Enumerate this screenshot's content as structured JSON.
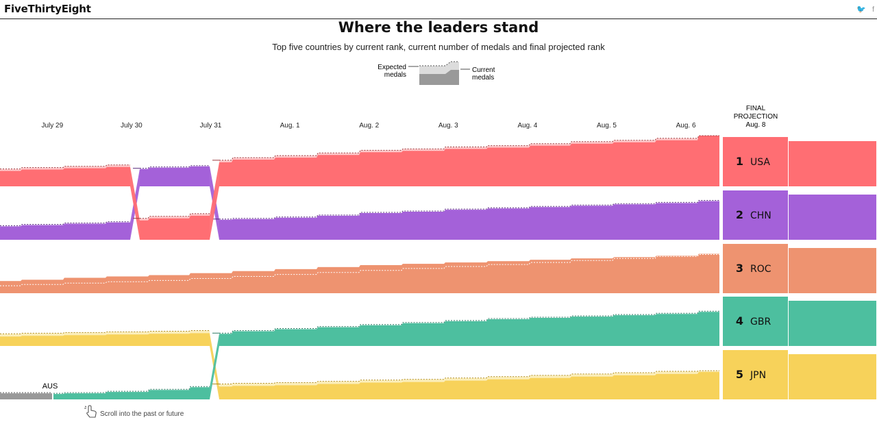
{
  "header": {
    "brand": "FiveThirtyEight",
    "social": [
      "twitter-icon",
      "facebook-icon"
    ]
  },
  "title": "Where the leaders stand",
  "subtitle": "Top five countries by current rank, current number of medals and final projected rank",
  "legend": {
    "expected": [
      "Expected",
      "medals"
    ],
    "current": [
      "Current",
      "medals"
    ]
  },
  "final_projection": {
    "line1": "FINAL",
    "line2": "PROJECTION",
    "line3": "Aug. 8"
  },
  "scroll_hint": "Scroll into the past or future",
  "colors": {
    "USA": "#ff6e73",
    "CHN": "#a461d9",
    "ROC": "#ee9370",
    "GBR": "#4dbf9f",
    "JPN": "#f7d25a",
    "AUS": "#999999"
  },
  "chart_data": {
    "type": "area",
    "title": "Where the leaders stand",
    "categories": [
      "July 29",
      "July 30",
      "July 31",
      "Aug. 1",
      "Aug. 2",
      "Aug. 3",
      "Aug. 4",
      "Aug. 5",
      "Aug. 6"
    ],
    "rank_slots": [
      1,
      2,
      3,
      4,
      5
    ],
    "standings": [
      {
        "day": "July 29",
        "order": [
          "USA",
          "CHN",
          "ROC",
          "JPN",
          "AUS"
        ]
      },
      {
        "day": "July 30",
        "order": [
          "USA",
          "CHN",
          "ROC",
          "JPN",
          "GBR"
        ]
      },
      {
        "day": "July 31",
        "order": [
          "CHN",
          "USA",
          "ROC",
          "JPN",
          "GBR"
        ]
      },
      {
        "day": "Aug. 1",
        "order": [
          "USA",
          "CHN",
          "ROC",
          "GBR",
          "JPN"
        ]
      },
      {
        "day": "Aug. 2",
        "order": [
          "USA",
          "CHN",
          "ROC",
          "GBR",
          "JPN"
        ]
      },
      {
        "day": "Aug. 3",
        "order": [
          "USA",
          "CHN",
          "ROC",
          "GBR",
          "JPN"
        ]
      },
      {
        "day": "Aug. 4",
        "order": [
          "USA",
          "CHN",
          "ROC",
          "GBR",
          "JPN"
        ]
      },
      {
        "day": "Aug. 5",
        "order": [
          "USA",
          "CHN",
          "ROC",
          "GBR",
          "JPN"
        ]
      },
      {
        "day": "Aug. 6",
        "order": [
          "USA",
          "CHN",
          "ROC",
          "GBR",
          "JPN"
        ]
      }
    ],
    "final_projection": [
      {
        "rank": "1",
        "country": "USA"
      },
      {
        "rank": "2",
        "country": "CHN"
      },
      {
        "rank": "3",
        "country": "ROC"
      },
      {
        "rank": "4",
        "country": "GBR"
      },
      {
        "rank": "5",
        "country": "JPN"
      }
    ],
    "series": [
      {
        "name": "USA",
        "current": [
          17,
          19,
          21,
          23,
          26,
          30,
          34,
          37,
          41,
          45,
          47,
          50,
          52,
          55,
          58,
          60,
          63,
          70
        ],
        "expected": [
          20,
          22,
          24,
          26,
          29,
          33,
          37,
          40,
          44,
          48,
          50,
          53,
          55,
          58,
          61,
          63,
          66,
          70
        ]
      },
      {
        "name": "CHN",
        "current": [
          14,
          16,
          18,
          20,
          22,
          24,
          25,
          27,
          30,
          34,
          36,
          39,
          41,
          43,
          45,
          47,
          49,
          52
        ]
      },
      {
        "name": "ROC",
        "current": [
          12,
          14,
          17,
          19,
          21,
          24,
          27,
          30,
          33,
          36,
          38,
          40,
          42,
          44,
          46,
          48,
          50,
          53
        ],
        "expected": [
          5,
          7,
          9,
          11,
          13,
          16,
          19,
          22,
          25,
          28,
          31,
          34,
          37,
          40,
          43,
          46,
          49,
          52
        ]
      },
      {
        "name": "GBR",
        "current": [
          1,
          2,
          3,
          5,
          8,
          12,
          16,
          19,
          22,
          25,
          28,
          31,
          34,
          36,
          38,
          40,
          42,
          45
        ]
      },
      {
        "name": "JPN",
        "current": [
          8,
          9,
          10,
          11,
          12,
          13,
          14,
          15,
          17,
          19,
          20,
          22,
          24,
          26,
          28,
          30,
          32,
          35
        ],
        "expected": [
          12,
          13,
          14,
          15,
          16,
          17,
          18,
          19,
          21,
          23,
          24,
          26,
          28,
          30,
          32,
          34,
          36,
          37
        ]
      },
      {
        "name": "AUS",
        "current": [
          3,
          3,
          3
        ]
      }
    ]
  }
}
